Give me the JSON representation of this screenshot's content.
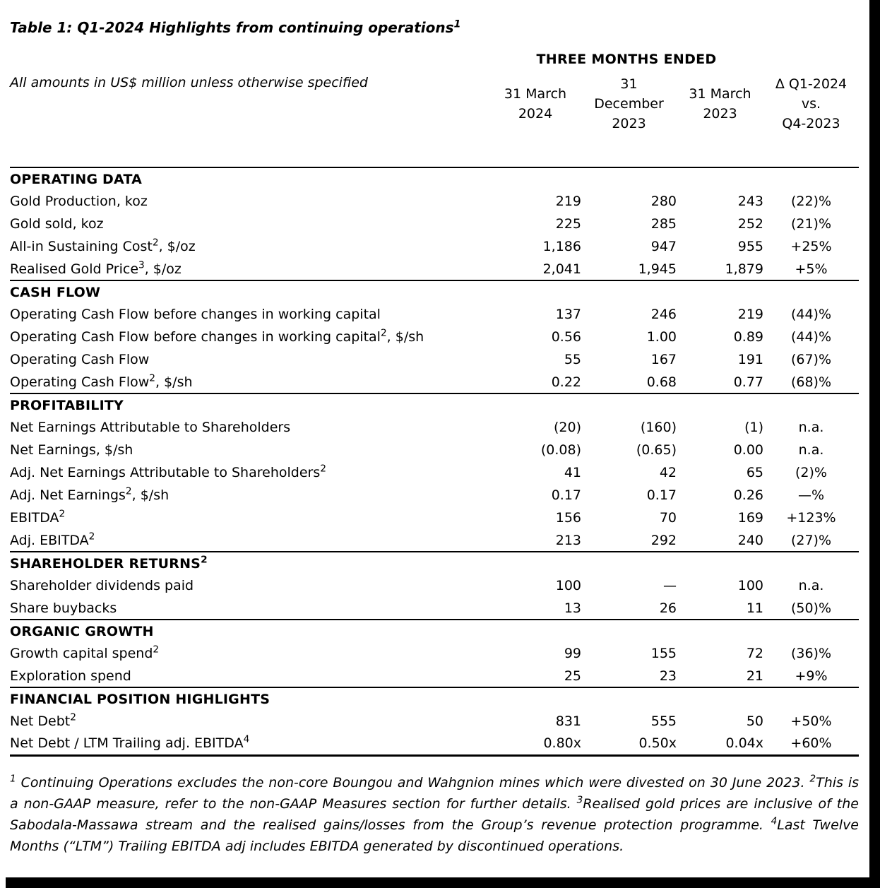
{
  "page": {
    "title": "Table 1: Q1-2024 Highlights from continuing operations¹",
    "subtitle": "All amounts in US$ million unless otherwise specified",
    "footnote": "¹ Continuing Operations excludes the non-core Boungou and Wahgnion mines which were divested on 30 June 2023. ²This is a non-GAAP measure, refer to the non-GAAP Measures section for further details. ³Realised gold prices are inclusive of the Sabodala-Massawa stream and the realised gains/losses from the Group’s revenue protection programme. ⁴Last Twelve Months (“LTM”) Trailing EBITDA adj includes EBITDA generated by discontinued operations."
  },
  "table": {
    "period_header": "THREE MONTHS ENDED",
    "columns": [
      "31 March\n2024",
      "31\nDecember\n2023",
      "31 March\n2023",
      "Δ Q1-2024\nvs.\nQ4-2023"
    ],
    "sections": [
      {
        "header": "OPERATING DATA",
        "rows": [
          {
            "label": "Gold Production, koz",
            "values": [
              "219",
              "280",
              "243"
            ],
            "delta": "(22)%"
          },
          {
            "label": "Gold sold, koz",
            "values": [
              "225",
              "285",
              "252"
            ],
            "delta": "(21)%"
          },
          {
            "label": "All-in Sustaining Cost², $/oz",
            "values": [
              "1,186",
              "947",
              "955"
            ],
            "delta": "+25%"
          },
          {
            "label": "Realised Gold Price³, $/oz",
            "values": [
              "2,041",
              "1,945",
              "1,879"
            ],
            "delta": "+5%"
          }
        ]
      },
      {
        "header": "CASH FLOW",
        "rows": [
          {
            "label": "Operating Cash Flow before changes in working capital",
            "values": [
              "137",
              "246",
              "219"
            ],
            "delta": "(44)%"
          },
          {
            "label": "Operating Cash Flow before changes in working capital², $/sh",
            "values": [
              "0.56",
              "1.00",
              "0.89"
            ],
            "delta": "(44)%"
          },
          {
            "label": "Operating Cash Flow",
            "values": [
              "55",
              "167",
              "191"
            ],
            "delta": "(67)%"
          },
          {
            "label": "Operating Cash Flow², $/sh",
            "values": [
              "0.22",
              "0.68",
              "0.77"
            ],
            "delta": "(68)%"
          }
        ]
      },
      {
        "header": "PROFITABILITY",
        "rows": [
          {
            "label": "Net Earnings Attributable to Shareholders",
            "values": [
              "(20)",
              "(160)",
              "(1)"
            ],
            "delta": "n.a."
          },
          {
            "label": "Net Earnings, $/sh",
            "values": [
              "(0.08)",
              "(0.65)",
              "0.00"
            ],
            "delta": "n.a."
          },
          {
            "label": "Adj. Net Earnings Attributable to Shareholders²",
            "values": [
              "41",
              "42",
              "65"
            ],
            "delta": "(2)%"
          },
          {
            "label": "Adj. Net Earnings², $/sh",
            "values": [
              "0.17",
              "0.17",
              "0.26"
            ],
            "delta": "—%"
          },
          {
            "label": "EBITDA²",
            "values": [
              "156",
              "70",
              "169"
            ],
            "delta": "+123%"
          },
          {
            "label": "Adj. EBITDA²",
            "values": [
              "213",
              "292",
              "240"
            ],
            "delta": "(27)%"
          }
        ]
      },
      {
        "header": "SHAREHOLDER RETURNS²",
        "rows": [
          {
            "label": "Shareholder dividends paid",
            "values": [
              "100",
              "—",
              "100"
            ],
            "delta": "n.a."
          },
          {
            "label": "Share buybacks",
            "values": [
              "13",
              "26",
              "11"
            ],
            "delta": "(50)%"
          }
        ]
      },
      {
        "header": "ORGANIC GROWTH",
        "rows": [
          {
            "label": "Growth capital spend²",
            "values": [
              "99",
              "155",
              "72"
            ],
            "delta": "(36)%"
          },
          {
            "label": "Exploration spend",
            "values": [
              "25",
              "23",
              "21"
            ],
            "delta": "+9%"
          }
        ]
      },
      {
        "header": "FINANCIAL POSITION HIGHLIGHTS",
        "rows": [
          {
            "label": "Net Debt²",
            "values": [
              "831",
              "555",
              "50"
            ],
            "delta": "+50%"
          },
          {
            "label": "Net Debt / LTM Trailing adj. EBITDA⁴",
            "values": [
              "0.80x",
              "0.50x",
              "0.04x"
            ],
            "delta": "+60%"
          }
        ]
      }
    ]
  }
}
